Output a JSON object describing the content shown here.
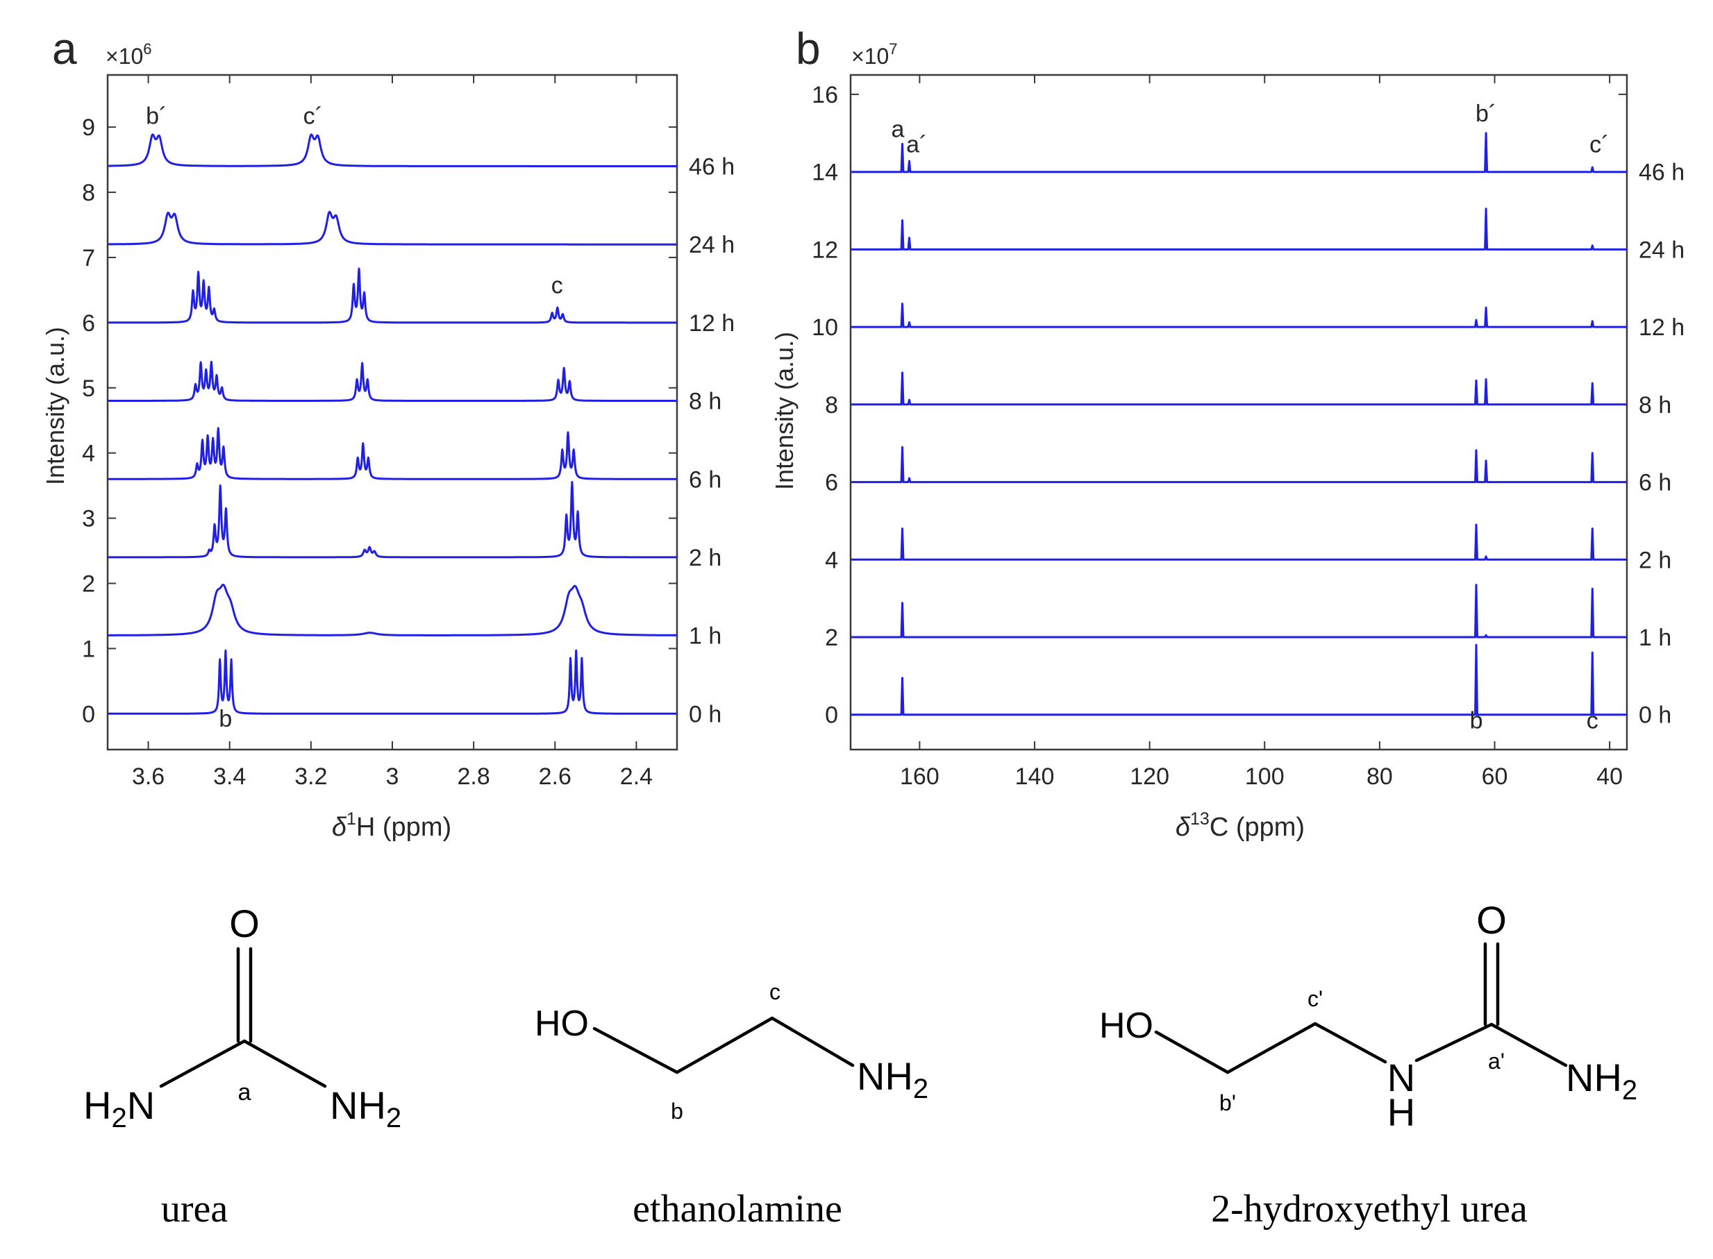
{
  "colors": {
    "spectrum": "#1f1fe6",
    "axis": "#262626",
    "frame": "#3a3a3a"
  },
  "chart_data": [
    {
      "panel_label": "a",
      "type": "line",
      "nucleus": "1H",
      "multiplier": "×10",
      "multiplier_exp": "6",
      "xlabel_pre": "δ",
      "xlabel_sup": "1",
      "xlabel_post": "H (ppm)",
      "ylabel": "Intensity (a.u.)",
      "xlim": [
        3.7,
        2.3
      ],
      "ylim": [
        -0.55,
        9.8
      ],
      "xticks": [
        3.6,
        3.4,
        3.2,
        3.0,
        2.8,
        2.6,
        2.4
      ],
      "xtick_labels": [
        "3.6",
        "3.4",
        "3.2",
        "3",
        "2.8",
        "2.6",
        "2.4"
      ],
      "yticks": [
        0,
        1,
        2,
        3,
        4,
        5,
        6,
        7,
        8,
        9
      ],
      "ytick_labels": [
        "0",
        "1",
        "2",
        "3",
        "4",
        "5",
        "6",
        "7",
        "8",
        "9"
      ],
      "series": [
        {
          "name": "0 h",
          "baseline": 0.0,
          "peaks": [
            {
              "ppm": 3.424,
              "height": 0.8,
              "width": 0.0025
            },
            {
              "ppm": 3.41,
              "height": 0.92,
              "width": 0.0025
            },
            {
              "ppm": 3.396,
              "height": 0.8,
              "width": 0.0025
            },
            {
              "ppm": 2.562,
              "height": 0.82,
              "width": 0.0025
            },
            {
              "ppm": 2.548,
              "height": 0.92,
              "width": 0.0025
            },
            {
              "ppm": 2.534,
              "height": 0.82,
              "width": 0.0025
            }
          ]
        },
        {
          "name": "1 h",
          "baseline": 1.2,
          "peaks": [
            {
              "ppm": 3.432,
              "height": 0.45,
              "width": 0.013
            },
            {
              "ppm": 3.415,
              "height": 0.5,
              "width": 0.013
            },
            {
              "ppm": 3.398,
              "height": 0.3,
              "width": 0.013
            },
            {
              "ppm": 3.055,
              "height": 0.04,
              "width": 0.02
            },
            {
              "ppm": 2.566,
              "height": 0.42,
              "width": 0.013
            },
            {
              "ppm": 2.55,
              "height": 0.48,
              "width": 0.013
            },
            {
              "ppm": 2.534,
              "height": 0.28,
              "width": 0.013
            }
          ]
        },
        {
          "name": "2 h",
          "baseline": 2.4,
          "peaks": [
            {
              "ppm": 3.45,
              "height": 0.08,
              "width": 0.003
            },
            {
              "ppm": 3.437,
              "height": 0.45,
              "width": 0.003
            },
            {
              "ppm": 3.423,
              "height": 1.05,
              "width": 0.003
            },
            {
              "ppm": 3.409,
              "height": 0.7,
              "width": 0.003
            },
            {
              "ppm": 3.068,
              "height": 0.1,
              "width": 0.004
            },
            {
              "ppm": 3.056,
              "height": 0.14,
              "width": 0.004
            },
            {
              "ppm": 3.044,
              "height": 0.08,
              "width": 0.004
            },
            {
              "ppm": 2.572,
              "height": 0.6,
              "width": 0.003
            },
            {
              "ppm": 2.558,
              "height": 1.1,
              "width": 0.003
            },
            {
              "ppm": 2.544,
              "height": 0.65,
              "width": 0.003
            }
          ]
        },
        {
          "name": "6 h",
          "baseline": 3.6,
          "peaks": [
            {
              "ppm": 3.48,
              "height": 0.2,
              "width": 0.003
            },
            {
              "ppm": 3.467,
              "height": 0.55,
              "width": 0.003
            },
            {
              "ppm": 3.454,
              "height": 0.6,
              "width": 0.003
            },
            {
              "ppm": 3.441,
              "height": 0.55,
              "width": 0.003
            },
            {
              "ppm": 3.428,
              "height": 0.72,
              "width": 0.003
            },
            {
              "ppm": 3.415,
              "height": 0.45,
              "width": 0.003
            },
            {
              "ppm": 3.085,
              "height": 0.3,
              "width": 0.003
            },
            {
              "ppm": 3.072,
              "height": 0.52,
              "width": 0.003
            },
            {
              "ppm": 3.059,
              "height": 0.3,
              "width": 0.003
            },
            {
              "ppm": 2.582,
              "height": 0.42,
              "width": 0.003
            },
            {
              "ppm": 2.568,
              "height": 0.68,
              "width": 0.003
            },
            {
              "ppm": 2.554,
              "height": 0.42,
              "width": 0.003
            }
          ]
        },
        {
          "name": "8 h",
          "baseline": 4.8,
          "peaks": [
            {
              "ppm": 3.484,
              "height": 0.22,
              "width": 0.003
            },
            {
              "ppm": 3.471,
              "height": 0.55,
              "width": 0.003
            },
            {
              "ppm": 3.458,
              "height": 0.42,
              "width": 0.003
            },
            {
              "ppm": 3.445,
              "height": 0.55,
              "width": 0.003
            },
            {
              "ppm": 3.432,
              "height": 0.35,
              "width": 0.003
            },
            {
              "ppm": 3.419,
              "height": 0.18,
              "width": 0.003
            },
            {
              "ppm": 3.087,
              "height": 0.3,
              "width": 0.003
            },
            {
              "ppm": 3.074,
              "height": 0.55,
              "width": 0.003
            },
            {
              "ppm": 3.061,
              "height": 0.3,
              "width": 0.003
            },
            {
              "ppm": 2.592,
              "height": 0.3,
              "width": 0.003
            },
            {
              "ppm": 2.578,
              "height": 0.48,
              "width": 0.003
            },
            {
              "ppm": 2.564,
              "height": 0.28,
              "width": 0.003
            }
          ]
        },
        {
          "name": "12 h",
          "baseline": 6.0,
          "peaks": [
            {
              "ppm": 3.49,
              "height": 0.45,
              "width": 0.003
            },
            {
              "ppm": 3.477,
              "height": 0.72,
              "width": 0.003
            },
            {
              "ppm": 3.464,
              "height": 0.58,
              "width": 0.003
            },
            {
              "ppm": 3.451,
              "height": 0.5,
              "width": 0.003
            },
            {
              "ppm": 3.438,
              "height": 0.18,
              "width": 0.003
            },
            {
              "ppm": 3.095,
              "height": 0.55,
              "width": 0.003
            },
            {
              "ppm": 3.082,
              "height": 0.78,
              "width": 0.003
            },
            {
              "ppm": 3.069,
              "height": 0.42,
              "width": 0.003
            },
            {
              "ppm": 2.607,
              "height": 0.14,
              "width": 0.003
            },
            {
              "ppm": 2.594,
              "height": 0.22,
              "width": 0.003
            },
            {
              "ppm": 2.581,
              "height": 0.12,
              "width": 0.003
            }
          ]
        },
        {
          "name": "24 h",
          "baseline": 7.2,
          "peaks": [
            {
              "ppm": 3.552,
              "height": 0.4,
              "width": 0.009
            },
            {
              "ppm": 3.535,
              "height": 0.38,
              "width": 0.009
            },
            {
              "ppm": 3.155,
              "height": 0.42,
              "width": 0.009
            },
            {
              "ppm": 3.138,
              "height": 0.35,
              "width": 0.009
            }
          ]
        },
        {
          "name": "46 h",
          "baseline": 8.4,
          "peaks": [
            {
              "ppm": 3.59,
              "height": 0.4,
              "width": 0.009
            },
            {
              "ppm": 3.573,
              "height": 0.38,
              "width": 0.009
            },
            {
              "ppm": 3.2,
              "height": 0.4,
              "width": 0.009
            },
            {
              "ppm": 3.183,
              "height": 0.38,
              "width": 0.009
            }
          ]
        }
      ],
      "annotations": [
        {
          "text": "b´",
          "x": 3.58,
          "y": 9.05
        },
        {
          "text": "c´",
          "x": 3.195,
          "y": 9.05
        },
        {
          "text": "c",
          "x": 2.595,
          "y": 6.45
        },
        {
          "text": "b",
          "x": 3.41,
          "y": -0.2
        }
      ]
    },
    {
      "panel_label": "b",
      "type": "line",
      "nucleus": "13C",
      "multiplier": "×10",
      "multiplier_exp": "7",
      "xlabel_pre": "δ",
      "xlabel_sup": "13",
      "xlabel_post": "C (ppm)",
      "ylabel": "Intensity (a.u.)",
      "xlim": [
        172,
        37
      ],
      "ylim": [
        -0.9,
        16.5
      ],
      "xticks": [
        160,
        140,
        120,
        100,
        80,
        60,
        40
      ],
      "xtick_labels": [
        "160",
        "140",
        "120",
        "100",
        "80",
        "60",
        "40"
      ],
      "yticks": [
        0,
        2,
        4,
        6,
        8,
        10,
        12,
        14,
        16
      ],
      "ytick_labels": [
        "0",
        "2",
        "4",
        "6",
        "8",
        "10",
        "12",
        "14",
        "16"
      ],
      "series": [
        {
          "name": "0 h",
          "baseline": 0,
          "peaks": [
            {
              "ppm": 163.0,
              "height": 0.95
            },
            {
              "ppm": 63.2,
              "height": 1.8
            },
            {
              "ppm": 43.0,
              "height": 1.6
            }
          ]
        },
        {
          "name": "1 h",
          "baseline": 2,
          "peaks": [
            {
              "ppm": 163.0,
              "height": 0.88
            },
            {
              "ppm": 63.2,
              "height": 1.35
            },
            {
              "ppm": 61.5,
              "height": 0.05
            },
            {
              "ppm": 43.0,
              "height": 1.25
            }
          ]
        },
        {
          "name": "2 h",
          "baseline": 4,
          "peaks": [
            {
              "ppm": 163.0,
              "height": 0.8
            },
            {
              "ppm": 63.2,
              "height": 0.9
            },
            {
              "ppm": 61.5,
              "height": 0.08
            },
            {
              "ppm": 43.0,
              "height": 0.8
            }
          ]
        },
        {
          "name": "6 h",
          "baseline": 6,
          "peaks": [
            {
              "ppm": 163.0,
              "height": 0.9
            },
            {
              "ppm": 161.8,
              "height": 0.1
            },
            {
              "ppm": 63.2,
              "height": 0.82
            },
            {
              "ppm": 61.5,
              "height": 0.55
            },
            {
              "ppm": 43.0,
              "height": 0.75
            }
          ]
        },
        {
          "name": "8 h",
          "baseline": 8,
          "peaks": [
            {
              "ppm": 163.0,
              "height": 0.82
            },
            {
              "ppm": 161.8,
              "height": 0.12
            },
            {
              "ppm": 63.2,
              "height": 0.62
            },
            {
              "ppm": 61.5,
              "height": 0.65
            },
            {
              "ppm": 43.0,
              "height": 0.55
            }
          ]
        },
        {
          "name": "12 h",
          "baseline": 10,
          "peaks": [
            {
              "ppm": 163.0,
              "height": 0.6
            },
            {
              "ppm": 161.8,
              "height": 0.12
            },
            {
              "ppm": 63.2,
              "height": 0.18
            },
            {
              "ppm": 61.5,
              "height": 0.5
            },
            {
              "ppm": 43.0,
              "height": 0.15
            }
          ]
        },
        {
          "name": "24 h",
          "baseline": 12,
          "peaks": [
            {
              "ppm": 163.0,
              "height": 0.75
            },
            {
              "ppm": 161.8,
              "height": 0.3
            },
            {
              "ppm": 61.5,
              "height": 1.05
            },
            {
              "ppm": 43.0,
              "height": 0.1
            }
          ]
        },
        {
          "name": "46 h",
          "baseline": 14,
          "peaks": [
            {
              "ppm": 163.0,
              "height": 0.72
            },
            {
              "ppm": 161.8,
              "height": 0.28
            },
            {
              "ppm": 61.5,
              "height": 1.0
            },
            {
              "ppm": 43.0,
              "height": 0.12
            }
          ]
        }
      ],
      "annotations": [
        {
          "text": "a",
          "x": 163.8,
          "y": 14.9
        },
        {
          "text": "a´",
          "x": 160.5,
          "y": 14.5
        },
        {
          "text": "b´",
          "x": 61.5,
          "y": 15.3
        },
        {
          "text": "c´",
          "x": 41.8,
          "y": 14.5
        },
        {
          "text": "b",
          "x": 63.2,
          "y": -0.35
        },
        {
          "text": "c",
          "x": 43.0,
          "y": -0.35
        }
      ]
    }
  ],
  "molecules": [
    {
      "name": "urea",
      "atoms": [
        "O",
        "H",
        "2",
        "N",
        "NH",
        "2"
      ],
      "labels": [
        "a"
      ]
    },
    {
      "name": "ethanolamine",
      "atoms": [
        "HO",
        "NH",
        "2"
      ],
      "labels": [
        "c",
        "b"
      ]
    },
    {
      "name": "2-hydroxyethyl urea",
      "atoms": [
        "HO",
        "N",
        "H",
        "O",
        "NH",
        "2"
      ],
      "labels": [
        "c'",
        "b'",
        "a'"
      ]
    }
  ]
}
